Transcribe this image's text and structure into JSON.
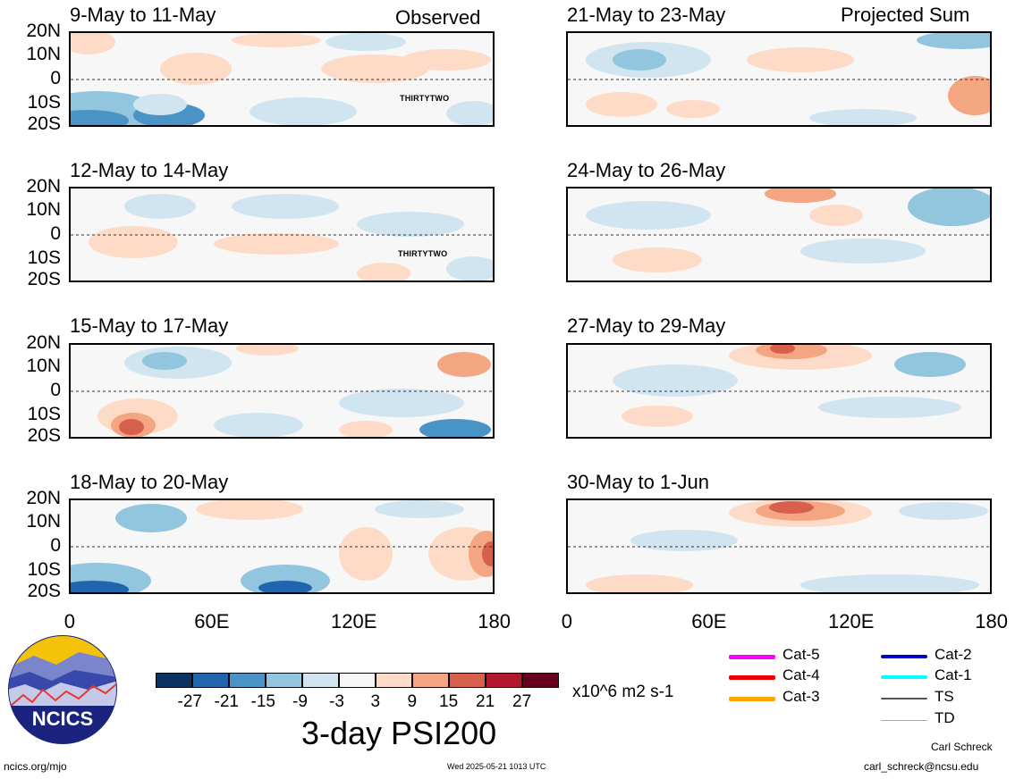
{
  "header": {
    "left_corner": "Observed",
    "right_corner": "Projected Sum"
  },
  "panels": [
    {
      "id": "p1",
      "title": "9-May to 11-May",
      "storm": "THIRTYTWO"
    },
    {
      "id": "p2",
      "title": "12-May to 14-May",
      "storm": "THIRTYTWO"
    },
    {
      "id": "p3",
      "title": "15-May to 17-May",
      "storm": ""
    },
    {
      "id": "p4",
      "title": "18-May to 20-May",
      "storm": ""
    },
    {
      "id": "p5",
      "title": "21-May to 23-May",
      "storm": ""
    },
    {
      "id": "p6",
      "title": "24-May to 26-May",
      "storm": ""
    },
    {
      "id": "p7",
      "title": "27-May to 29-May",
      "storm": ""
    },
    {
      "id": "p8",
      "title": "30-May to 1-Jun",
      "storm": ""
    }
  ],
  "lat_labels": [
    "20N",
    "10N",
    "0",
    "10S",
    "20S"
  ],
  "lon_labels": [
    "0",
    "60E",
    "120E",
    "180"
  ],
  "colorbar": {
    "colors": [
      "#0a3263",
      "#2166ac",
      "#4a93c6",
      "#92c5de",
      "#d1e5f0",
      "#f7f7f7",
      "#fddbc7",
      "#f4a582",
      "#d6604d",
      "#b2182b",
      "#67001f"
    ],
    "labels": [
      "-27",
      "-21",
      "-15",
      "-9",
      "-3",
      "3",
      "9",
      "15",
      "21",
      "27"
    ],
    "units": "x10^6 m2 s-1"
  },
  "product_title": "3-day PSI200",
  "legend": [
    {
      "label": "Cat-5",
      "color": "#ff00ff",
      "width": 5
    },
    {
      "label": "Cat-4",
      "color": "#ee0000",
      "width": 5
    },
    {
      "label": "Cat-3",
      "color": "#ffa500",
      "width": 5
    },
    {
      "label": "Cat-2",
      "color": "#0000cc",
      "width": 4
    },
    {
      "label": "Cat-1",
      "color": "#00ffff",
      "width": 4
    },
    {
      "label": "TS",
      "color": "#555555",
      "width": 2
    },
    {
      "label": "TD",
      "color": "#aaaaaa",
      "width": 1
    }
  ],
  "logo_text": "NCICS",
  "footer": {
    "site": "ncics.org/mjo",
    "timestamp": "Wed 2025-05-21 1013 UTC",
    "author": "Carl Schreck",
    "email": "carl_schreck@ncsu.edu"
  }
}
